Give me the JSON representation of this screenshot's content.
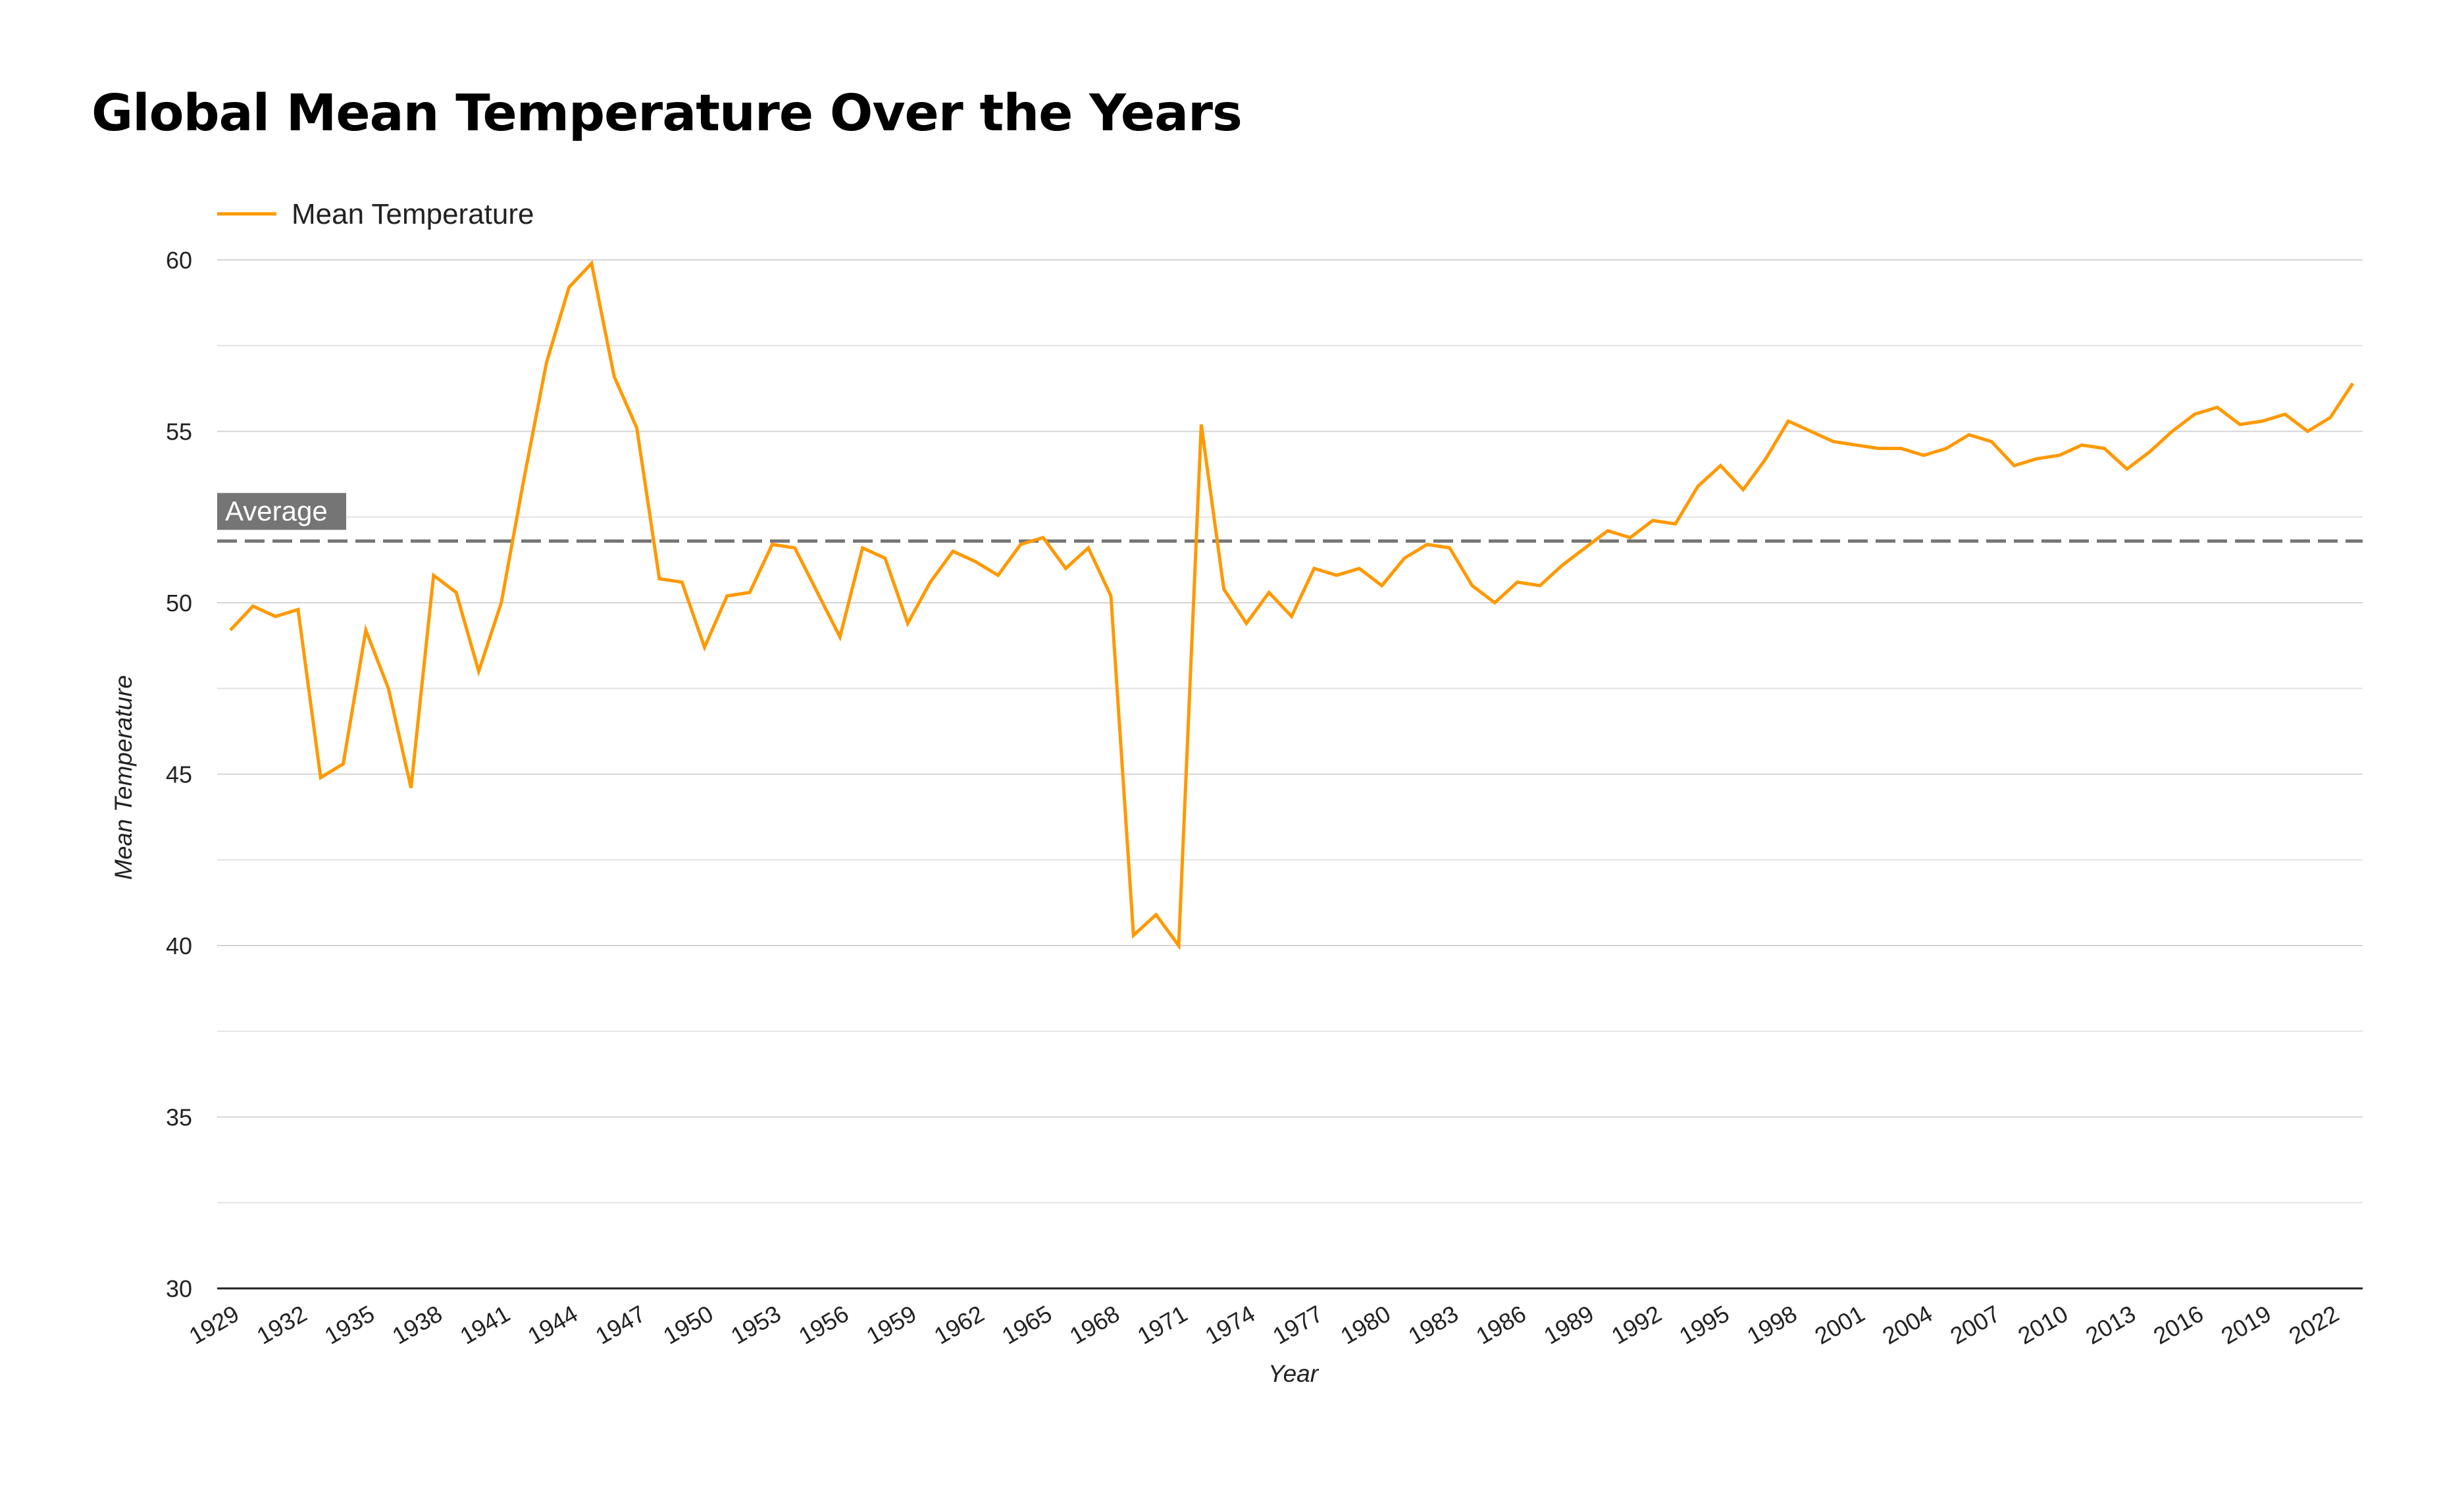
{
  "chart_data": {
    "type": "line",
    "title": "Global Mean Temperature Over the Years",
    "xlabel": "Year",
    "ylabel": "Mean Temperature",
    "xlim": [
      1929,
      2023
    ],
    "ylim": [
      30,
      60
    ],
    "yticks": [
      30,
      35,
      40,
      45,
      50,
      55,
      60
    ],
    "xtick_step": 3,
    "grid": true,
    "legend_position": "top-left",
    "series": [
      {
        "name": "Mean Temperature",
        "color": "#ff9900",
        "x": [
          1929,
          1930,
          1931,
          1932,
          1933,
          1934,
          1935,
          1936,
          1937,
          1938,
          1939,
          1940,
          1941,
          1942,
          1943,
          1944,
          1945,
          1946,
          1947,
          1948,
          1949,
          1950,
          1951,
          1952,
          1953,
          1954,
          1955,
          1956,
          1957,
          1958,
          1959,
          1960,
          1961,
          1962,
          1963,
          1964,
          1965,
          1966,
          1967,
          1968,
          1969,
          1970,
          1971,
          1972,
          1973,
          1974,
          1975,
          1976,
          1977,
          1978,
          1979,
          1980,
          1981,
          1982,
          1983,
          1984,
          1985,
          1986,
          1987,
          1988,
          1989,
          1990,
          1991,
          1992,
          1993,
          1994,
          1995,
          1996,
          1997,
          1998,
          1999,
          2000,
          2001,
          2002,
          2003,
          2004,
          2005,
          2006,
          2007,
          2008,
          2009,
          2010,
          2011,
          2012,
          2013,
          2014,
          2015,
          2016,
          2017,
          2018,
          2019,
          2020,
          2021,
          2022,
          2023
        ],
        "values": [
          49.2,
          49.9,
          49.6,
          49.8,
          44.9,
          45.3,
          49.2,
          47.5,
          44.6,
          50.8,
          50.3,
          48.0,
          50.0,
          53.6,
          57.0,
          59.2,
          59.9,
          56.6,
          55.1,
          50.7,
          50.6,
          48.7,
          50.2,
          50.3,
          51.7,
          51.6,
          50.3,
          49.0,
          51.6,
          51.3,
          49.4,
          50.6,
          51.5,
          51.2,
          50.8,
          51.7,
          51.9,
          51.0,
          51.6,
          50.2,
          40.3,
          40.9,
          40.0,
          55.2,
          50.4,
          49.4,
          50.3,
          49.6,
          51.0,
          50.8,
          51.0,
          50.5,
          51.3,
          51.7,
          51.6,
          50.5,
          50.0,
          50.6,
          50.5,
          51.1,
          51.6,
          52.1,
          51.9,
          52.4,
          52.3,
          53.4,
          54.0,
          53.3,
          54.2,
          55.3,
          55.0,
          54.7,
          54.6,
          54.5,
          54.5,
          54.3,
          54.5,
          54.9,
          54.7,
          54.0,
          54.2,
          54.3,
          54.6,
          54.5,
          53.9,
          54.4,
          55.0,
          55.5,
          55.7,
          55.2,
          55.3,
          55.5,
          55.0,
          55.4,
          56.4
        ]
      }
    ],
    "reference_line": {
      "label": "Average",
      "value": 51.8,
      "style": "dashed",
      "color": "#757575"
    }
  }
}
